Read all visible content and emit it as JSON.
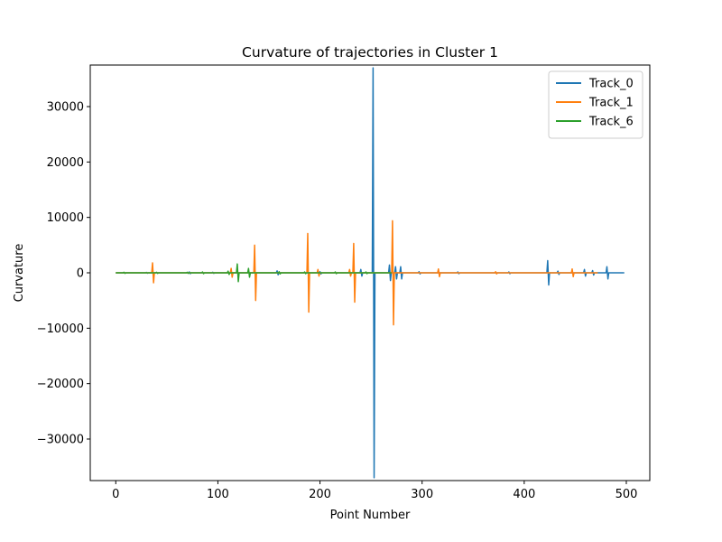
{
  "chart_data": {
    "type": "line",
    "title": "Curvature of trajectories in Cluster 1",
    "xlabel": "Point Number",
    "ylabel": "Curvature",
    "xlim": [
      -25,
      523
    ],
    "ylim": [
      -37500,
      37500
    ],
    "xticks": [
      0,
      100,
      200,
      300,
      400,
      500
    ],
    "yticks": [
      -30000,
      -20000,
      -10000,
      0,
      10000,
      20000,
      30000
    ],
    "ytick_labels": [
      "−30000",
      "−20000",
      "−10000",
      "0",
      "10000",
      "20000",
      "30000"
    ],
    "grid": false,
    "legend_position": "top-right",
    "series": [
      {
        "name": "Track_0",
        "color": "#1f77b4",
        "x_range": [
          0,
          498
        ],
        "baseline": 0,
        "spikes": [
          {
            "x": 30,
            "amp": 80
          },
          {
            "x": 72,
            "amp": 150
          },
          {
            "x": 95,
            "amp": 100
          },
          {
            "x": 158,
            "amp": 350
          },
          {
            "x": 200,
            "amp": 200
          },
          {
            "x": 240,
            "amp": 600
          },
          {
            "x": 252,
            "amp": 37000
          },
          {
            "x": 268,
            "amp": 1400
          },
          {
            "x": 274,
            "amp": 1100
          },
          {
            "x": 279,
            "amp": 1100
          },
          {
            "x": 297,
            "amp": 200
          },
          {
            "x": 335,
            "amp": 150
          },
          {
            "x": 385,
            "amp": 150
          },
          {
            "x": 423,
            "amp": 2200
          },
          {
            "x": 433,
            "amp": 300
          },
          {
            "x": 459,
            "amp": 600
          },
          {
            "x": 467,
            "amp": 400
          },
          {
            "x": 481,
            "amp": 1100
          }
        ]
      },
      {
        "name": "Track_1",
        "color": "#ff7f0e",
        "x_range": [
          0,
          472
        ],
        "baseline": 0,
        "spikes": [
          {
            "x": 36,
            "amp": 1800
          },
          {
            "x": 113,
            "amp": 800
          },
          {
            "x": 136,
            "amp": 5000
          },
          {
            "x": 188,
            "amp": 7100
          },
          {
            "x": 198,
            "amp": 600
          },
          {
            "x": 229,
            "amp": 600
          },
          {
            "x": 233,
            "amp": 5300
          },
          {
            "x": 271,
            "amp": 9400
          },
          {
            "x": 316,
            "amp": 700
          },
          {
            "x": 372,
            "amp": 200
          },
          {
            "x": 447,
            "amp": 700
          }
        ]
      },
      {
        "name": "Track_6",
        "color": "#2ca02c",
        "x_range": [
          0,
          270
        ],
        "baseline": 0,
        "spikes": [
          {
            "x": 8,
            "amp": 100
          },
          {
            "x": 40,
            "amp": 100
          },
          {
            "x": 70,
            "amp": 100
          },
          {
            "x": 85,
            "amp": 150
          },
          {
            "x": 110,
            "amp": 300
          },
          {
            "x": 119,
            "amp": 1600
          },
          {
            "x": 130,
            "amp": 800
          },
          {
            "x": 160,
            "amp": 200
          },
          {
            "x": 185,
            "amp": 150
          },
          {
            "x": 215,
            "amp": 150
          },
          {
            "x": 245,
            "amp": 150
          }
        ]
      }
    ]
  }
}
